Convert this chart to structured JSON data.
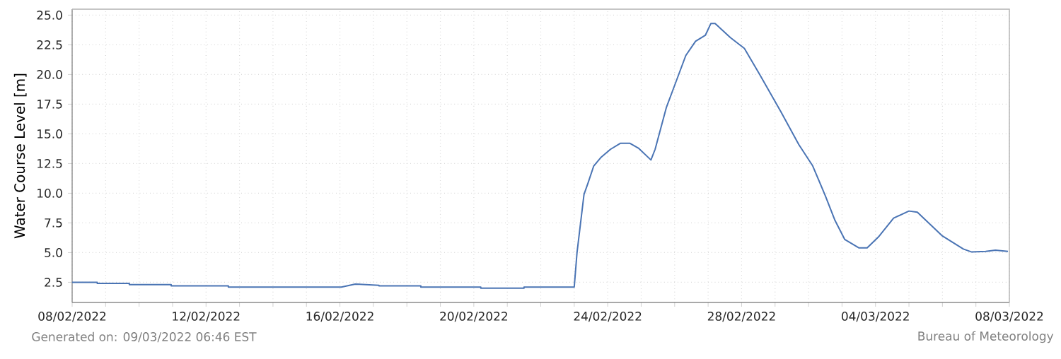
{
  "chart_data": {
    "type": "line",
    "ylabel": "Water Course Level [m]",
    "color": "#4a74b4",
    "grid": true,
    "xlim": [
      "2022-02-08",
      "2022-03-08"
    ],
    "ylim": [
      0.8,
      25.5
    ],
    "xticks": [
      {
        "value": "2022-02-08",
        "label": "08/02/2022"
      },
      {
        "value": "2022-02-09",
        "label": null
      },
      {
        "value": "2022-02-10",
        "label": null
      },
      {
        "value": "2022-02-11",
        "label": null
      },
      {
        "value": "2022-02-12",
        "label": "12/02/2022"
      },
      {
        "value": "2022-02-13",
        "label": null
      },
      {
        "value": "2022-02-14",
        "label": null
      },
      {
        "value": "2022-02-15",
        "label": null
      },
      {
        "value": "2022-02-16",
        "label": "16/02/2022"
      },
      {
        "value": "2022-02-17",
        "label": null
      },
      {
        "value": "2022-02-18",
        "label": null
      },
      {
        "value": "2022-02-19",
        "label": null
      },
      {
        "value": "2022-02-20",
        "label": "20/02/2022"
      },
      {
        "value": "2022-02-21",
        "label": null
      },
      {
        "value": "2022-02-22",
        "label": null
      },
      {
        "value": "2022-02-23",
        "label": null
      },
      {
        "value": "2022-02-24",
        "label": "24/02/2022"
      },
      {
        "value": "2022-02-25",
        "label": null
      },
      {
        "value": "2022-02-26",
        "label": null
      },
      {
        "value": "2022-02-27",
        "label": null
      },
      {
        "value": "2022-02-28",
        "label": "28/02/2022"
      },
      {
        "value": "2022-03-01",
        "label": null
      },
      {
        "value": "2022-03-02",
        "label": null
      },
      {
        "value": "2022-03-03",
        "label": null
      },
      {
        "value": "2022-03-04",
        "label": "04/03/2022"
      },
      {
        "value": "2022-03-05",
        "label": null
      },
      {
        "value": "2022-03-06",
        "label": null
      },
      {
        "value": "2022-03-07",
        "label": null
      },
      {
        "value": "2022-03-08",
        "label": "08/03/2022"
      }
    ],
    "yticks": [
      {
        "value": 2.5,
        "label": "2.5"
      },
      {
        "value": 5,
        "label": "5.0"
      },
      {
        "value": 7.5,
        "label": "7.5"
      },
      {
        "value": 10,
        "label": "10.0"
      },
      {
        "value": 12.5,
        "label": "12.5"
      },
      {
        "value": 15,
        "label": "15.0"
      },
      {
        "value": 17.5,
        "label": "17.5"
      },
      {
        "value": 20,
        "label": "20.0"
      },
      {
        "value": 22.5,
        "label": "22.5"
      },
      {
        "value": 25,
        "label": "25.0"
      }
    ],
    "x": [
      "2022-02-08T00:00",
      "2022-02-08T18:00",
      "2022-02-08T18:00",
      "2022-02-09T17:00",
      "2022-02-09T17:00",
      "2022-02-10T23:00",
      "2022-02-10T23:00",
      "2022-02-12T16:00",
      "2022-02-12T16:00",
      "2022-02-16T01:00",
      "2022-02-16T11:00",
      "2022-02-17T04:00",
      "2022-02-17T04:00",
      "2022-02-18T10:00",
      "2022-02-18T10:00",
      "2022-02-20T05:00",
      "2022-02-20T05:00",
      "2022-02-21T12:00",
      "2022-02-21T12:00",
      "2022-02-23T00:00",
      "2022-02-23T02:00",
      "2022-02-23T07:00",
      "2022-02-23T10:00",
      "2022-02-23T14:00",
      "2022-02-23T19:00",
      "2022-02-24T02:00",
      "2022-02-24T09:00",
      "2022-02-24T16:00",
      "2022-02-24T22:00",
      "2022-02-25T07:00",
      "2022-02-25T10:00",
      "2022-02-25T18:00",
      "2022-02-26T01:00",
      "2022-02-26T08:00",
      "2022-02-26T15:00",
      "2022-02-26T22:00",
      "2022-02-27T02:00",
      "2022-02-27T05:00",
      "2022-02-27T16:00",
      "2022-02-28T02:00",
      "2022-02-28T13:00",
      "2022-03-01T04:00",
      "2022-03-01T17:00",
      "2022-03-02T03:00",
      "2022-03-02T12:00",
      "2022-03-02T19:00",
      "2022-03-03T02:00",
      "2022-03-03T12:00",
      "2022-03-03T18:00",
      "2022-03-04T02:00",
      "2022-03-04T13:00",
      "2022-03-05T00:00",
      "2022-03-05T06:00",
      "2022-03-06T00:00",
      "2022-03-06T15:00",
      "2022-03-06T21:00",
      "2022-03-07T07:00",
      "2022-03-07T14:00",
      "2022-03-07T23:00"
    ],
    "values": [
      2.5,
      2.5,
      2.4,
      2.4,
      2.3,
      2.3,
      2.2,
      2.2,
      2.1,
      2.1,
      2.35,
      2.25,
      2.2,
      2.2,
      2.1,
      2.1,
      2.0,
      2.0,
      2.1,
      2.1,
      5.0,
      9.9,
      10.9,
      12.3,
      13.0,
      13.7,
      14.2,
      14.2,
      13.8,
      12.8,
      13.7,
      17.2,
      19.4,
      21.6,
      22.8,
      23.3,
      24.3,
      24.3,
      23.1,
      22.2,
      20.0,
      16.9,
      14.1,
      12.3,
      9.8,
      7.7,
      6.1,
      5.4,
      5.4,
      6.3,
      7.9,
      8.5,
      8.4,
      6.4,
      5.3,
      5.05,
      5.1,
      5.2,
      5.1
    ],
    "annotations": [
      "Generated on: 09/03/2022 06:46 EST",
      "Bureau of Meteorology"
    ]
  }
}
